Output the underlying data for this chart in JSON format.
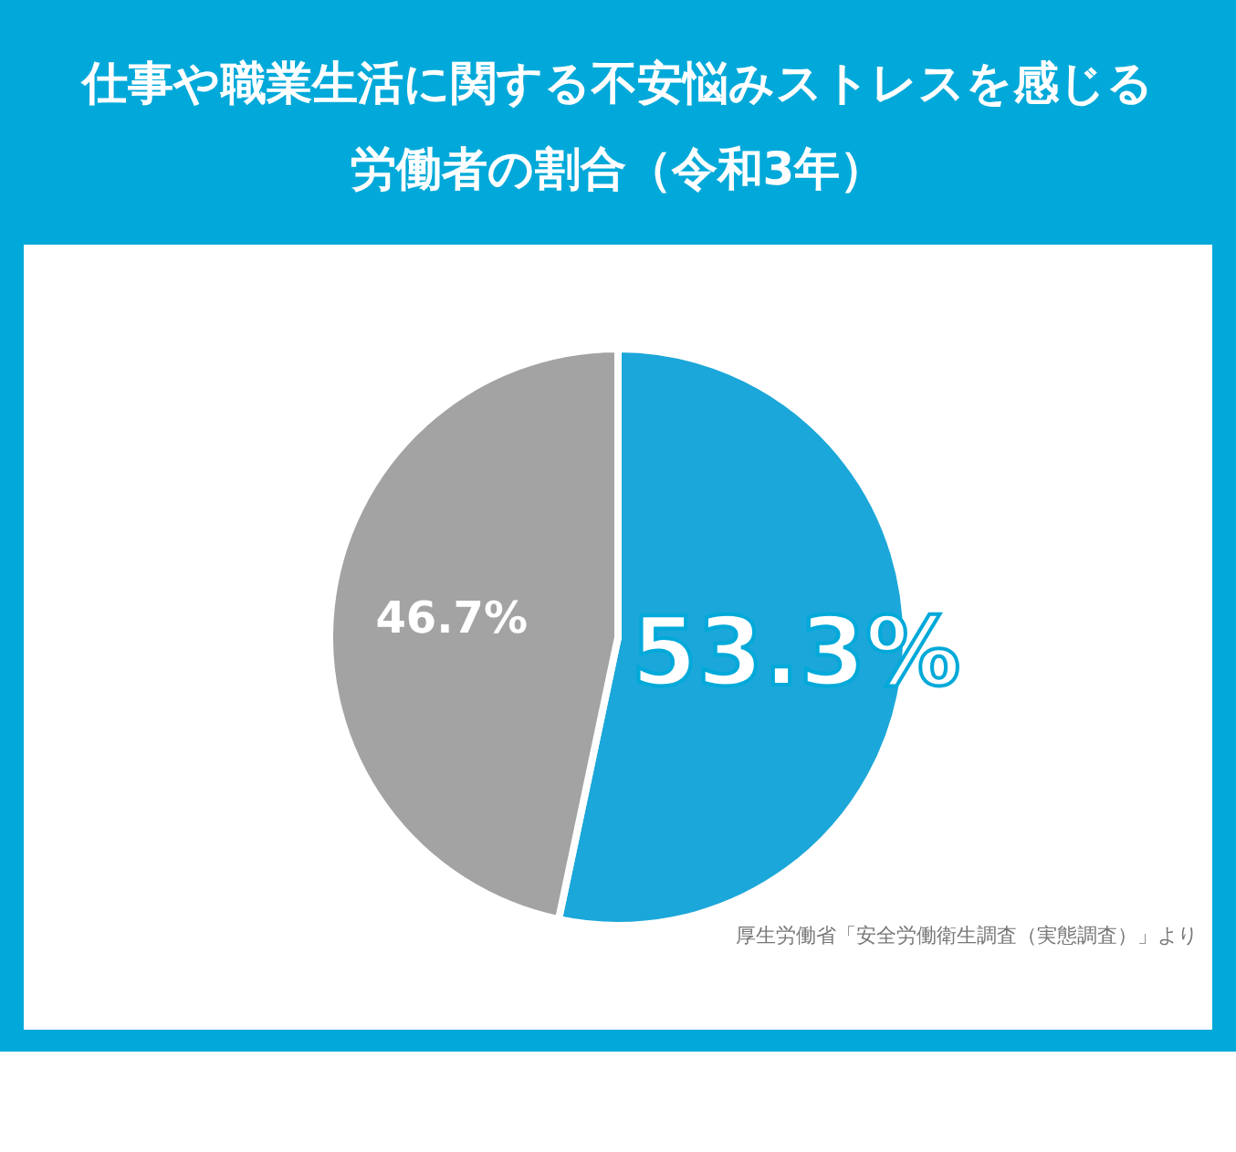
{
  "chart_data": {
    "type": "pie",
    "title": "仕事や職業生活に関する不安悩みストレスを感じる",
    "subtitle": "労働者の割合（令和3年）",
    "categories": [
      null,
      null
    ],
    "values": [
      53.3,
      46.7
    ],
    "colors": [
      "#1ba7d9",
      "#a3a3a3"
    ],
    "value_labels": [
      "53.3%",
      "46.7%"
    ],
    "annotations": [
      "厚生労働省「安全労働衛生調査（実態調査）」より"
    ]
  }
}
